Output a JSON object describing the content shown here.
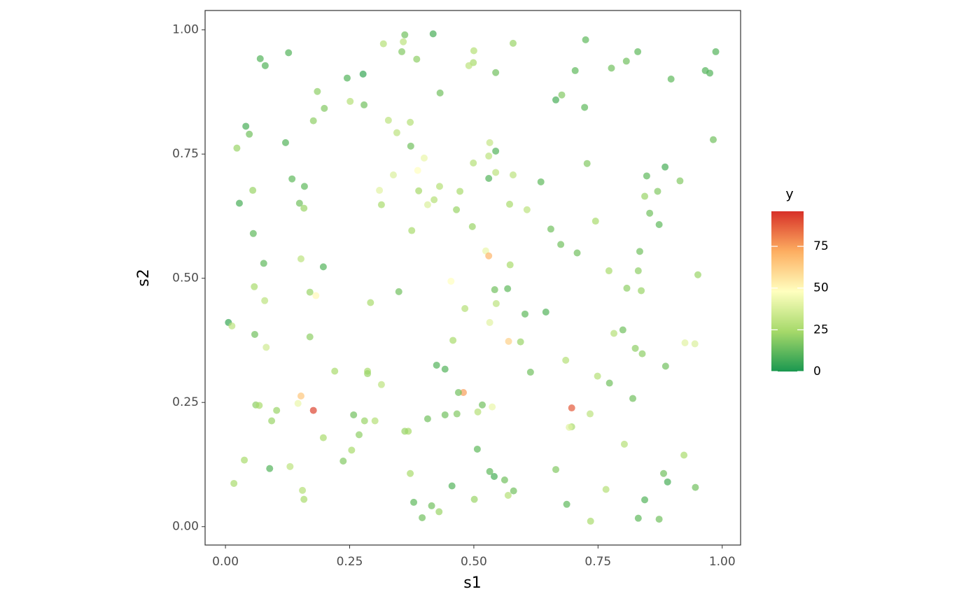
{
  "chart_data": {
    "type": "scatter",
    "xlabel": "s1",
    "ylabel": "s2",
    "xlim": [
      -0.041,
      1.037
    ],
    "ylim": [
      -0.037,
      1.039
    ],
    "xticks": [
      {
        "value": 0,
        "label": "0.00"
      },
      {
        "value": 0.25,
        "label": "0.25"
      },
      {
        "value": 0.5,
        "label": "0.50"
      },
      {
        "value": 0.75,
        "label": "0.75"
      },
      {
        "value": 1,
        "label": "1.00"
      }
    ],
    "yticks": [
      {
        "value": 0,
        "label": "0.00"
      },
      {
        "value": 0.25,
        "label": "0.25"
      },
      {
        "value": 0.5,
        "label": "0.50"
      },
      {
        "value": 0.75,
        "label": "0.75"
      },
      {
        "value": 1,
        "label": "1.00"
      }
    ],
    "x": [
      0.361,
      0.418,
      0.318,
      0.358,
      0.355,
      0.5,
      0.499,
      0.49,
      0.579,
      0.725,
      0.83,
      0.987,
      0.127,
      0.07,
      0.08,
      0.385,
      0.544,
      0.777,
      0.807,
      0.966,
      0.975,
      0.897,
      0.245,
      0.277,
      0.704,
      0.185,
      0.432,
      0.251,
      0.279,
      0.199,
      0.677,
      0.665,
      0.723,
      0.328,
      0.177,
      0.372,
      0.345,
      0.041,
      0.048,
      0.982,
      0.373,
      0.023,
      0.121,
      0.532,
      0.544,
      0.53,
      0.4,
      0.499,
      0.338,
      0.387,
      0.544,
      0.579,
      0.53,
      0.728,
      0.885,
      0.635,
      0.848,
      0.915,
      0.134,
      0.159,
      0.055,
      0.389,
      0.431,
      0.31,
      0.42,
      0.472,
      0.407,
      0.844,
      0.87,
      0.028,
      0.149,
      0.158,
      0.314,
      0.572,
      0.465,
      0.607,
      0.854,
      0.873,
      0.056,
      0.497,
      0.375,
      0.655,
      0.745,
      0.524,
      0.53,
      0.675,
      0.708,
      0.573,
      0.772,
      0.831,
      0.834,
      0.152,
      0.077,
      0.197,
      0.454,
      0.058,
      0.568,
      0.951,
      0.808,
      0.837,
      0.542,
      0.349,
      0.17,
      0.182,
      0.079,
      0.292,
      0.545,
      0.482,
      0.645,
      0.603,
      0.006,
      0.013,
      0.532,
      0.8,
      0.782,
      0.059,
      0.458,
      0.57,
      0.594,
      0.082,
      0.17,
      0.925,
      0.945,
      0.825,
      0.839,
      0.685,
      0.886,
      0.425,
      0.442,
      0.22,
      0.286,
      0.286,
      0.314,
      0.614,
      0.749,
      0.773,
      0.82,
      0.152,
      0.146,
      0.479,
      0.469,
      0.061,
      0.068,
      0.177,
      0.697,
      0.517,
      0.537,
      0.103,
      0.258,
      0.442,
      0.466,
      0.508,
      0.407,
      0.734,
      0.093,
      0.28,
      0.301,
      0.697,
      0.692,
      0.368,
      0.361,
      0.269,
      0.197,
      0.507,
      0.254,
      0.237,
      0.038,
      0.803,
      0.923,
      0.13,
      0.089,
      0.665,
      0.372,
      0.532,
      0.562,
      0.541,
      0.882,
      0.89,
      0.017,
      0.456,
      0.58,
      0.155,
      0.569,
      0.766,
      0.946,
      0.158,
      0.501,
      0.379,
      0.844,
      0.415,
      0.43,
      0.687,
      0.396,
      0.831,
      0.873,
      0.735
    ],
    "values": [
      0.99,
      0.992,
      0.972,
      0.976,
      0.956,
      0.958,
      0.934,
      0.928,
      0.973,
      0.98,
      0.956,
      0.956,
      0.954,
      0.942,
      0.928,
      0.941,
      0.914,
      0.923,
      0.937,
      0.918,
      0.913,
      0.901,
      0.903,
      0.911,
      0.918,
      0.876,
      0.873,
      0.856,
      0.849,
      0.842,
      0.869,
      0.859,
      0.844,
      0.818,
      0.817,
      0.814,
      0.793,
      0.806,
      0.79,
      0.779,
      0.766,
      0.762,
      0.773,
      0.773,
      0.756,
      0.746,
      0.742,
      0.732,
      0.708,
      0.717,
      0.713,
      0.708,
      0.701,
      0.731,
      0.724,
      0.694,
      0.706,
      0.696,
      0.7,
      0.685,
      0.677,
      0.676,
      0.685,
      0.677,
      0.658,
      0.675,
      0.648,
      0.665,
      0.675,
      0.651,
      0.651,
      0.641,
      0.648,
      0.649,
      0.638,
      0.638,
      0.631,
      0.608,
      0.59,
      0.604,
      0.596,
      0.599,
      0.615,
      0.555,
      0.545,
      0.568,
      0.551,
      0.527,
      0.515,
      0.515,
      0.554,
      0.539,
      0.53,
      0.523,
      0.494,
      0.483,
      0.479,
      0.507,
      0.48,
      0.475,
      0.477,
      0.473,
      0.472,
      0.465,
      0.455,
      0.451,
      0.449,
      0.439,
      0.432,
      0.428,
      0.411,
      0.404,
      0.411,
      0.396,
      0.389,
      0.387,
      0.375,
      0.373,
      0.372,
      0.361,
      0.382,
      0.37,
      0.368,
      0.359,
      0.348,
      0.335,
      0.323,
      0.325,
      0.317,
      0.313,
      0.313,
      0.308,
      0.286,
      0.311,
      0.303,
      0.289,
      0.258,
      0.263,
      0.248,
      0.27,
      0.27,
      0.245,
      0.244,
      0.234,
      0.239,
      0.245,
      0.241,
      0.234,
      0.225,
      0.225,
      0.227,
      0.231,
      0.217,
      0.227,
      0.213,
      0.213,
      0.213,
      0.201,
      0.2,
      0.192,
      0.192,
      0.185,
      0.179,
      0.156,
      0.154,
      0.132,
      0.134,
      0.166,
      0.144,
      0.121,
      0.117,
      0.115,
      0.107,
      0.111,
      0.094,
      0.101,
      0.107,
      0.09,
      0.087,
      0.082,
      0.072,
      0.073,
      0.063,
      0.075,
      0.079,
      0.055,
      0.055,
      0.049,
      0.054,
      0.042,
      0.03,
      0.045,
      0.018,
      0.017,
      0.015,
      0.011
    ],
    "z": [
      15,
      8,
      28,
      30,
      18,
      28,
      25,
      30,
      22,
      12,
      12,
      10,
      10,
      10,
      10,
      20,
      15,
      15,
      15,
      10,
      10,
      12,
      10,
      5,
      12,
      20,
      15,
      28,
      15,
      18,
      18,
      8,
      12,
      30,
      20,
      28,
      30,
      8,
      15,
      15,
      15,
      22,
      10,
      32,
      10,
      30,
      42,
      28,
      38,
      48,
      30,
      30,
      10,
      18,
      8,
      12,
      12,
      18,
      12,
      12,
      22,
      24,
      28,
      40,
      28,
      25,
      38,
      22,
      18,
      8,
      15,
      22,
      25,
      25,
      22,
      30,
      15,
      12,
      12,
      22,
      25,
      15,
      25,
      42,
      70,
      15,
      15,
      25,
      25,
      20,
      15,
      30,
      12,
      10,
      48,
      25,
      12,
      22,
      20,
      22,
      15,
      15,
      22,
      50,
      30,
      25,
      30,
      28,
      10,
      12,
      5,
      30,
      40,
      15,
      28,
      15,
      25,
      62,
      22,
      35,
      20,
      40,
      38,
      20,
      20,
      28,
      15,
      10,
      10,
      25,
      25,
      22,
      30,
      15,
      28,
      15,
      15,
      65,
      42,
      75,
      15,
      20,
      25,
      92,
      88,
      15,
      42,
      22,
      15,
      15,
      18,
      28,
      15,
      30,
      22,
      22,
      28,
      25,
      40,
      25,
      22,
      20,
      25,
      12,
      25,
      18,
      25,
      28,
      25,
      30,
      10,
      18,
      25,
      12,
      15,
      8,
      15,
      8,
      25,
      10,
      15,
      28,
      28,
      28,
      15,
      25,
      22,
      12,
      10,
      15,
      22,
      12,
      15,
      12,
      15,
      25
    ],
    "colorbar": {
      "title": "y",
      "lim": [
        0,
        96
      ],
      "ticks": [
        0,
        25,
        50,
        75
      ],
      "palette": [
        "#1a9850",
        "#a6d96a",
        "#ffffbf",
        "#fdae61",
        "#d73027"
      ]
    },
    "alpha": 0.7
  }
}
